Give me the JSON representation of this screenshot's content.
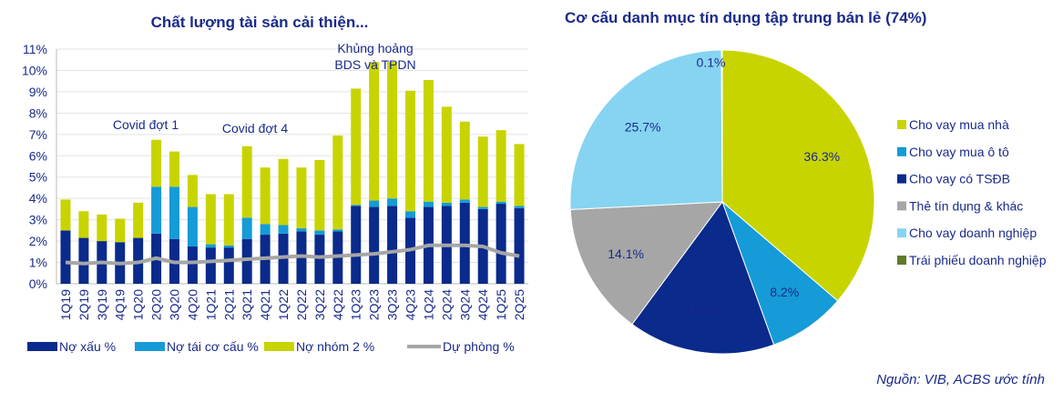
{
  "source_note": "Nguồn: VIB, ACBS ước tính",
  "chart_data": [
    {
      "type": "bar",
      "stacked": true,
      "title": "Chất lượng tài sản cải thiện...",
      "categories": [
        "1Q19",
        "2Q19",
        "3Q19",
        "4Q19",
        "1Q20",
        "2Q20",
        "3Q20",
        "4Q20",
        "1Q21",
        "2Q21",
        "3Q21",
        "4Q21",
        "1Q22",
        "2Q22",
        "3Q22",
        "4Q22",
        "1Q23",
        "2Q23",
        "3Q23",
        "4Q23",
        "1Q24",
        "2Q24",
        "3Q24",
        "4Q24",
        "1Q25",
        "2Q25"
      ],
      "series": [
        {
          "name": "Nợ xấu %",
          "color": "#0a2a8c",
          "values": [
            2.5,
            2.15,
            2.0,
            1.95,
            2.15,
            2.35,
            2.1,
            1.75,
            1.7,
            1.7,
            2.1,
            2.3,
            2.35,
            2.45,
            2.3,
            2.45,
            3.65,
            3.6,
            3.65,
            3.1,
            3.6,
            3.65,
            3.8,
            3.5,
            3.75,
            3.55
          ]
        },
        {
          "name": "Nợ tái cơ cấu %",
          "color": "#159bd7",
          "values": [
            0,
            0,
            0,
            0,
            0,
            2.2,
            2.45,
            1.85,
            0.15,
            0.1,
            1.0,
            0.5,
            0.4,
            0.15,
            0.2,
            0.1,
            0.05,
            0.3,
            0.35,
            0.3,
            0.25,
            0.15,
            0.15,
            0.1,
            0.1,
            0.1
          ]
        },
        {
          "name": "Nợ nhóm 2 %",
          "color": "#c8d400",
          "values": [
            1.45,
            1.25,
            1.25,
            1.1,
            1.65,
            2.2,
            1.65,
            1.5,
            2.35,
            2.4,
            3.35,
            2.65,
            3.1,
            2.85,
            3.3,
            4.4,
            5.45,
            6.5,
            6.4,
            5.65,
            5.7,
            4.5,
            3.65,
            3.3,
            3.35,
            2.9
          ]
        },
        {
          "name": "Dự phòng %",
          "type": "line",
          "color": "#a6a6a6",
          "values": [
            1.0,
            0.95,
            1.0,
            0.95,
            1.0,
            1.2,
            1.0,
            1.0,
            1.05,
            1.1,
            1.15,
            1.2,
            1.25,
            1.3,
            1.25,
            1.3,
            1.35,
            1.4,
            1.5,
            1.6,
            1.8,
            1.8,
            1.8,
            1.75,
            1.45,
            1.3
          ]
        }
      ],
      "yticks": [
        "0%",
        "1%",
        "2%",
        "3%",
        "4%",
        "5%",
        "6%",
        "7%",
        "8%",
        "9%",
        "10%",
        "11%"
      ],
      "ylim": [
        0,
        11
      ],
      "grid": true,
      "legend": "bottom",
      "annotations": [
        {
          "text": "Covid đợt 1",
          "at": "2Q20"
        },
        {
          "text": "Covid đợt 4",
          "at": "3Q21"
        },
        {
          "text": "Khủng hoảng",
          "at": "2Q23"
        },
        {
          "text": "BDS và TPDN",
          "at": "2Q23"
        }
      ]
    },
    {
      "type": "pie",
      "title": "Cơ cấu danh mục tín dụng tập trung bán lẻ (74%)",
      "legend": "right",
      "slices": [
        {
          "label": "Cho vay mua nhà",
          "value": 36.3,
          "text": "36.3%",
          "color": "#c8d400"
        },
        {
          "label": "Cho vay mua ô tô",
          "value": 8.2,
          "text": "8.2%",
          "color": "#159bd7"
        },
        {
          "label": "Cho vay có TSĐB",
          "value": 15.6,
          "text": "15.6%",
          "color": "#0a2a8c"
        },
        {
          "label": "Thẻ tín dụng & khác",
          "value": 14.1,
          "text": "14.1%",
          "color": "#a6a6a6"
        },
        {
          "label": "Cho vay doanh nghiệp",
          "value": 25.7,
          "text": "25.7%",
          "color": "#86d4f1"
        },
        {
          "label": "Trái phiếu doanh nghiệp",
          "value": 0.1,
          "text": "0.1%",
          "color": "#5f7a2e"
        }
      ]
    }
  ]
}
